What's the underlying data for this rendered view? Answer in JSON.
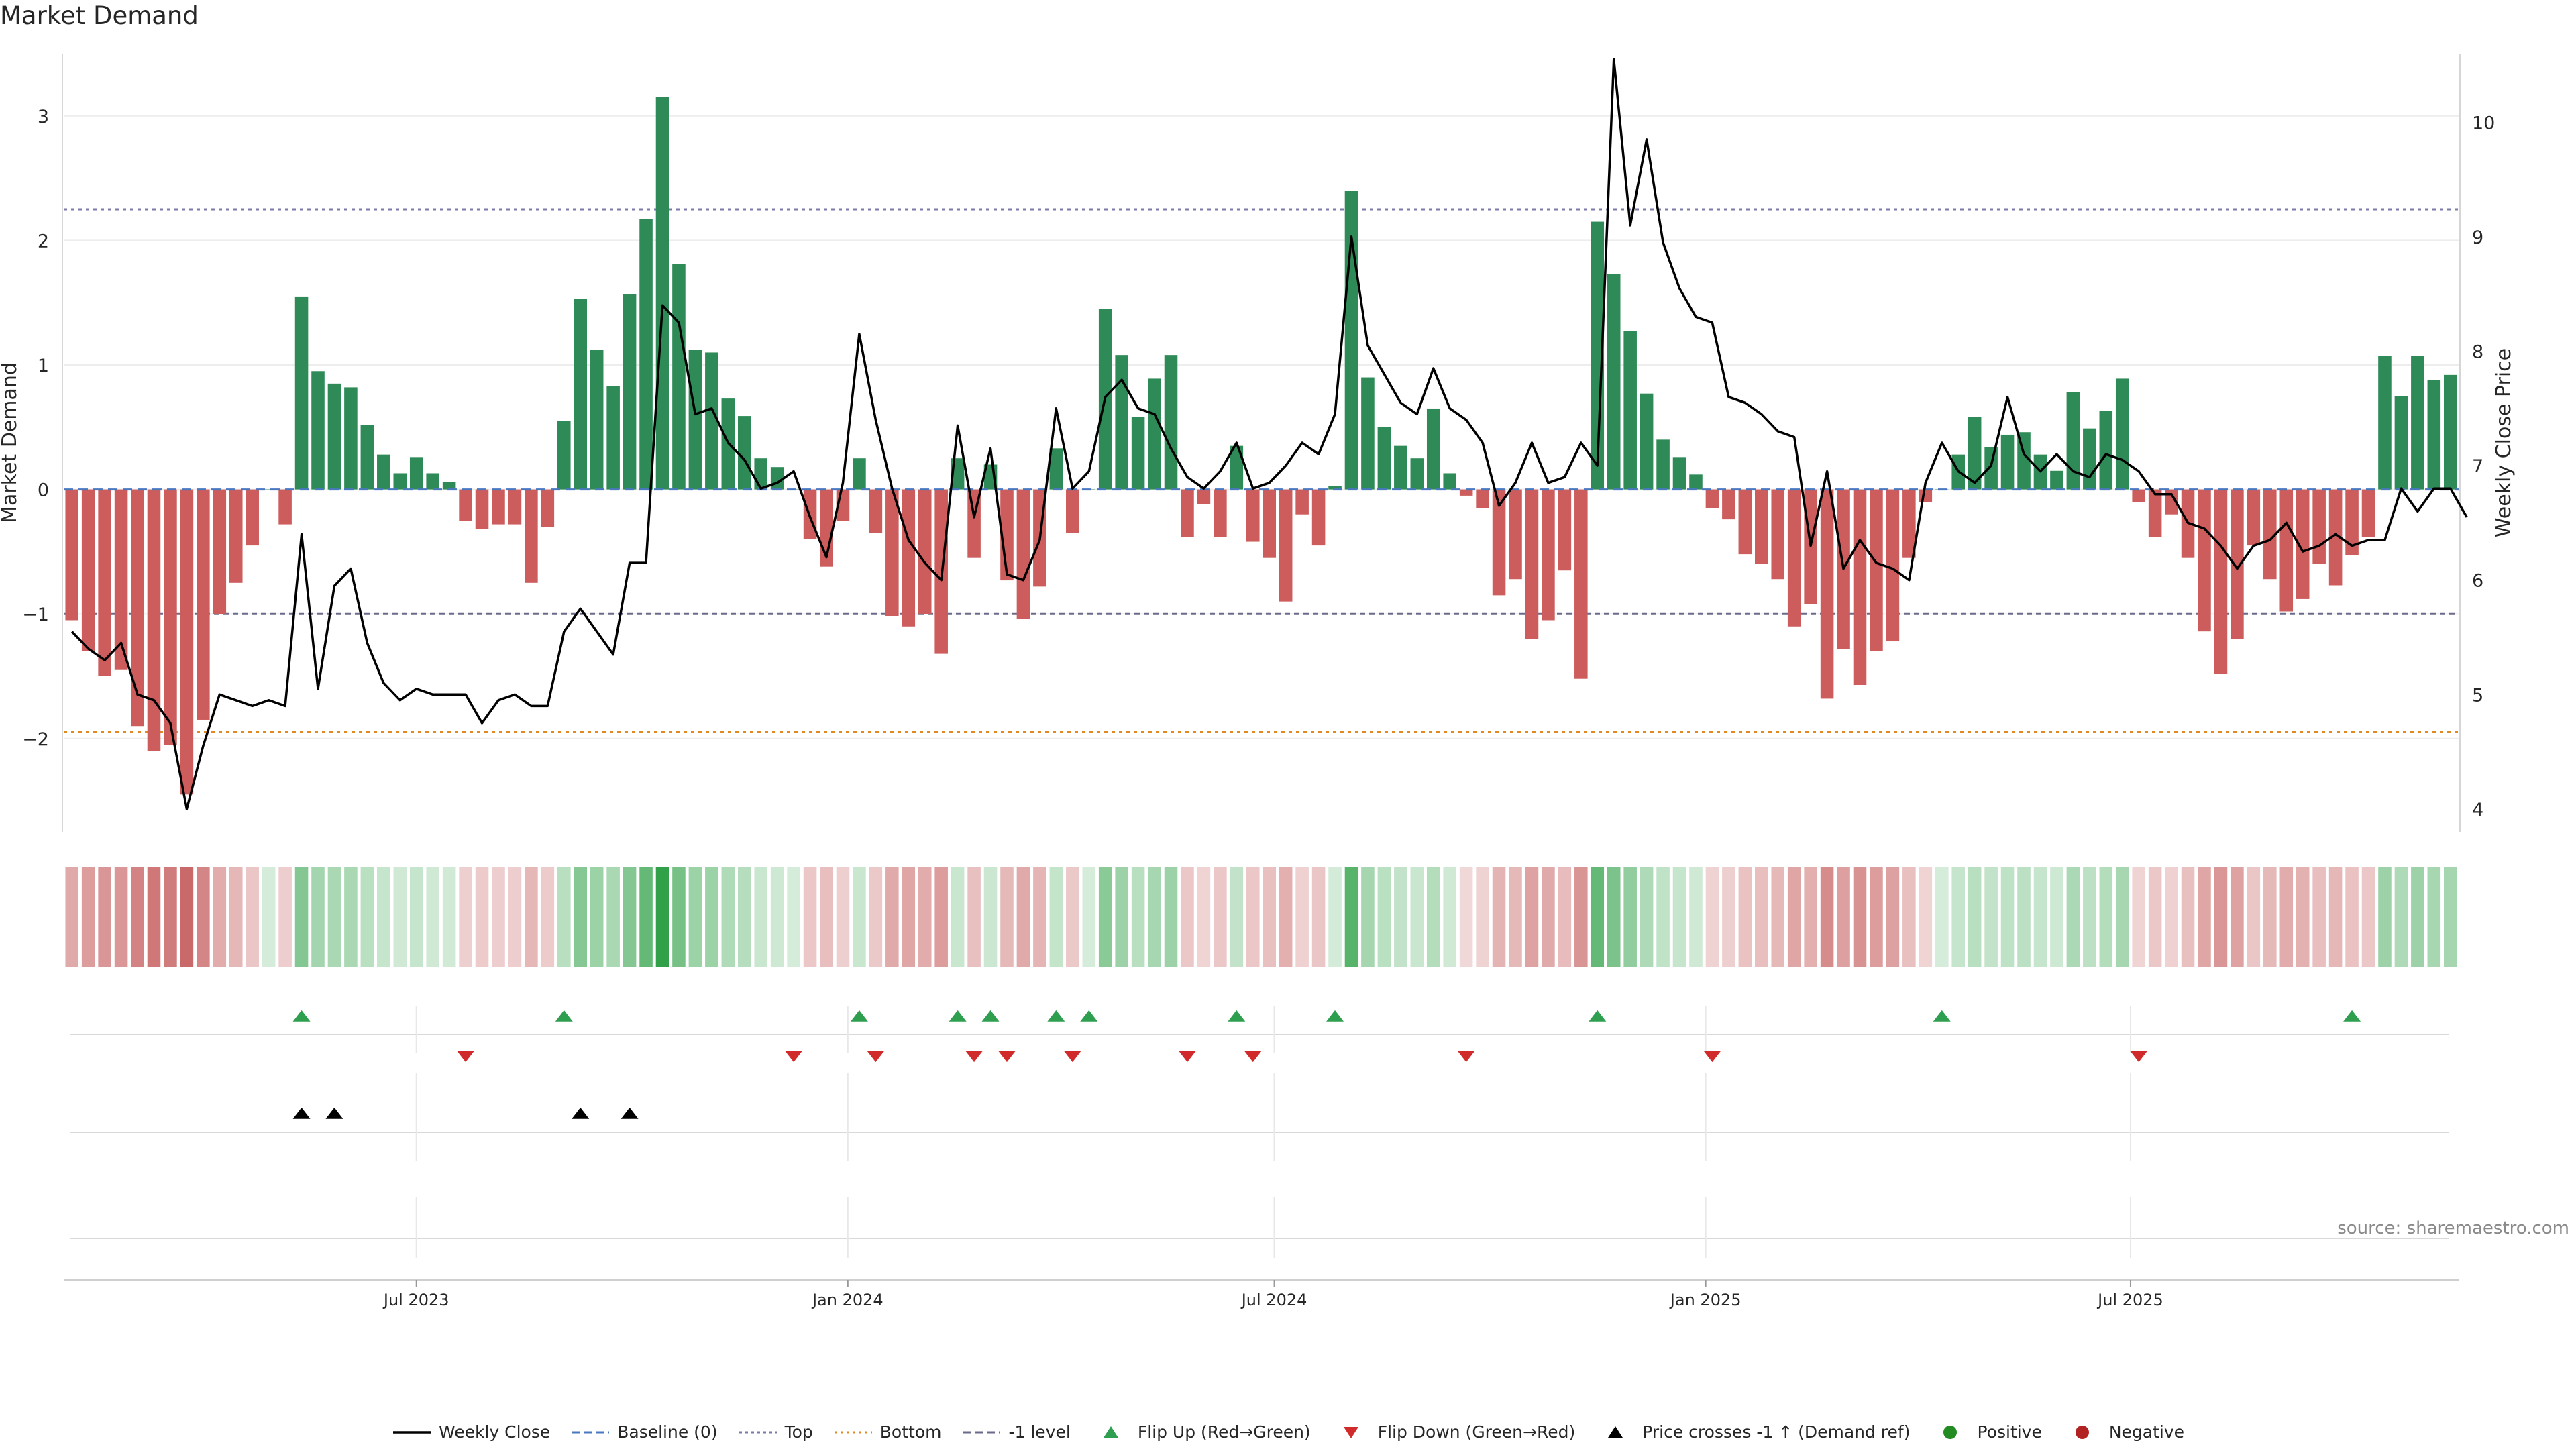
{
  "title": "Market Demand",
  "source": "source: sharemaestro.com",
  "colors": {
    "positive_bar": "#2e8b57",
    "negative_bar": "#cd5c5c",
    "price_line": "#000000",
    "baseline": "#4a78c0",
    "top": "#7a7aa8",
    "bottom": "#e08a20",
    "minus_one": "#6a6a8a",
    "flip_up": "#2e9e4f",
    "flip_down": "#d02a2a",
    "cross": "#000000",
    "positive_dot": "#228b22",
    "negative_dot": "#b22222"
  },
  "chart_data": {
    "type": "bar",
    "title": "Market Demand",
    "ylabel": "Market Demand",
    "y2label": "Weekly Close Price",
    "ylim": [
      -2.75,
      3.5
    ],
    "y2lim": [
      3.8,
      10.6
    ],
    "yticks": [
      3,
      2,
      1,
      0,
      -1,
      -2
    ],
    "ytick_labels": [
      "3",
      "2",
      "1",
      "0",
      "−1",
      "−2"
    ],
    "y2ticks": [
      10,
      9,
      8,
      7,
      6,
      5,
      4
    ],
    "xticks": [
      {
        "label": "Jul 2023",
        "index": 21
      },
      {
        "label": "Jan 2024",
        "index": 47.3
      },
      {
        "label": "Jul 2024",
        "index": 73.3
      },
      {
        "label": "Jan 2025",
        "index": 99.6
      },
      {
        "label": "Jul 2025",
        "index": 125.5
      }
    ],
    "reference_lines": {
      "top": 2.25,
      "bottom": -1.95,
      "minus_one": -1.0,
      "baseline": 0
    },
    "legend_position": "bottom-center",
    "demand": [
      -1.05,
      -1.3,
      -1.5,
      -1.45,
      -1.9,
      -2.1,
      -2.05,
      -2.45,
      -1.85,
      -1.0,
      -0.75,
      -0.45,
      0.0,
      -0.28,
      1.55,
      0.95,
      0.85,
      0.82,
      0.52,
      0.28,
      0.13,
      0.26,
      0.13,
      0.06,
      -0.25,
      -0.32,
      -0.28,
      -0.28,
      -0.75,
      -0.3,
      0.55,
      1.53,
      1.12,
      0.83,
      1.57,
      2.17,
      3.15,
      1.81,
      1.12,
      1.1,
      0.73,
      0.59,
      0.25,
      0.18,
      0.0,
      -0.4,
      -0.62,
      -0.25,
      0.25,
      -0.35,
      -1.02,
      -1.1,
      -1.0,
      -1.32,
      0.25,
      -0.55,
      0.2,
      -0.73,
      -1.04,
      -0.78,
      0.33,
      -0.35,
      0.0,
      1.45,
      1.08,
      0.58,
      0.89,
      1.08,
      -0.38,
      -0.12,
      -0.38,
      0.35,
      -0.42,
      -0.55,
      -0.9,
      -0.2,
      -0.45,
      0.03,
      2.4,
      0.9,
      0.5,
      0.35,
      0.25,
      0.65,
      0.13,
      -0.05,
      -0.15,
      -0.85,
      -0.72,
      -1.2,
      -1.05,
      -0.65,
      -1.52,
      2.15,
      1.73,
      1.27,
      0.77,
      0.4,
      0.26,
      0.12,
      -0.15,
      -0.24,
      -0.52,
      -0.6,
      -0.72,
      -1.1,
      -0.92,
      -1.68,
      -1.28,
      -1.57,
      -1.3,
      -1.22,
      -0.55,
      -0.1,
      0.0,
      0.28,
      0.58,
      0.34,
      0.44,
      0.46,
      0.28,
      0.15,
      0.78,
      0.49,
      0.63,
      0.89,
      -0.1,
      -0.38,
      -0.2,
      -0.55,
      -1.14,
      -1.48,
      -1.2,
      -0.45,
      -0.72,
      -0.98,
      -0.88,
      -0.6,
      -0.77,
      -0.53,
      -0.38,
      1.07,
      0.75,
      1.07,
      0.88,
      0.92
    ],
    "price": [
      5.55,
      5.4,
      5.3,
      5.45,
      5.0,
      4.95,
      4.75,
      4.0,
      4.55,
      5.0,
      4.95,
      4.9,
      4.95,
      4.9,
      6.4,
      5.05,
      5.95,
      6.1,
      5.45,
      5.1,
      4.95,
      5.05,
      5.0,
      5.0,
      5.0,
      4.75,
      4.95,
      5.0,
      4.9,
      4.9,
      5.55,
      5.75,
      5.55,
      5.35,
      6.15,
      6.15,
      8.4,
      8.25,
      7.45,
      7.5,
      7.2,
      7.05,
      6.8,
      6.85,
      6.95,
      6.55,
      6.2,
      6.85,
      8.15,
      7.4,
      6.8,
      6.35,
      6.15,
      6.0,
      7.35,
      6.55,
      7.15,
      6.05,
      6.0,
      6.35,
      7.5,
      6.8,
      6.95,
      7.6,
      7.75,
      7.5,
      7.45,
      7.15,
      6.9,
      6.8,
      6.95,
      7.2,
      6.8,
      6.85,
      7.0,
      7.2,
      7.1,
      7.45,
      9.0,
      8.05,
      7.8,
      7.55,
      7.45,
      7.85,
      7.5,
      7.4,
      7.2,
      6.65,
      6.85,
      7.2,
      6.85,
      6.9,
      7.2,
      7.0,
      10.55,
      9.1,
      9.85,
      8.95,
      8.55,
      8.3,
      8.25,
      7.6,
      7.55,
      7.45,
      7.3,
      7.25,
      6.3,
      6.95,
      6.1,
      6.35,
      6.15,
      6.1,
      6.0,
      6.85,
      7.2,
      6.95,
      6.85,
      7.0,
      7.6,
      7.1,
      6.95,
      7.1,
      6.95,
      6.9,
      7.1,
      7.05,
      6.95,
      6.75,
      6.75,
      6.5,
      6.45,
      6.3,
      6.1,
      6.3,
      6.35,
      6.5,
      6.25,
      6.3,
      6.4,
      6.3,
      6.35,
      6.35,
      6.8,
      6.6,
      6.8,
      6.8,
      6.55
    ],
    "flip_up": [
      14,
      30,
      48,
      54,
      56,
      60,
      62,
      71,
      77,
      93,
      114,
      139
    ],
    "flip_down": [
      24,
      44,
      49,
      55,
      57,
      61,
      68,
      72,
      85,
      100,
      126
    ],
    "price_cross_up": [
      14,
      16,
      31,
      34
    ]
  },
  "legend": [
    {
      "label": "Weekly Close",
      "kind": "line-solid",
      "color": "#000000"
    },
    {
      "label": "Baseline (0)",
      "kind": "line-dash",
      "color": "#4a78c0"
    },
    {
      "label": "Top",
      "kind": "line-dot",
      "color": "#7a7aa8"
    },
    {
      "label": "Bottom",
      "kind": "line-dot",
      "color": "#e08a20"
    },
    {
      "label": "-1 level",
      "kind": "line-dash",
      "color": "#6a6a8a"
    },
    {
      "label": "Flip Up (Red→Green)",
      "kind": "tri-up",
      "color": "#2e9e4f"
    },
    {
      "label": "Flip Down (Green→Red)",
      "kind": "tri-down",
      "color": "#d02a2a"
    },
    {
      "label": "Price crosses -1 ↑ (Demand ref)",
      "kind": "tri-up",
      "color": "#000000"
    },
    {
      "label": "Positive",
      "kind": "dot",
      "color": "#228b22"
    },
    {
      "label": "Negative",
      "kind": "dot",
      "color": "#b22222"
    }
  ]
}
